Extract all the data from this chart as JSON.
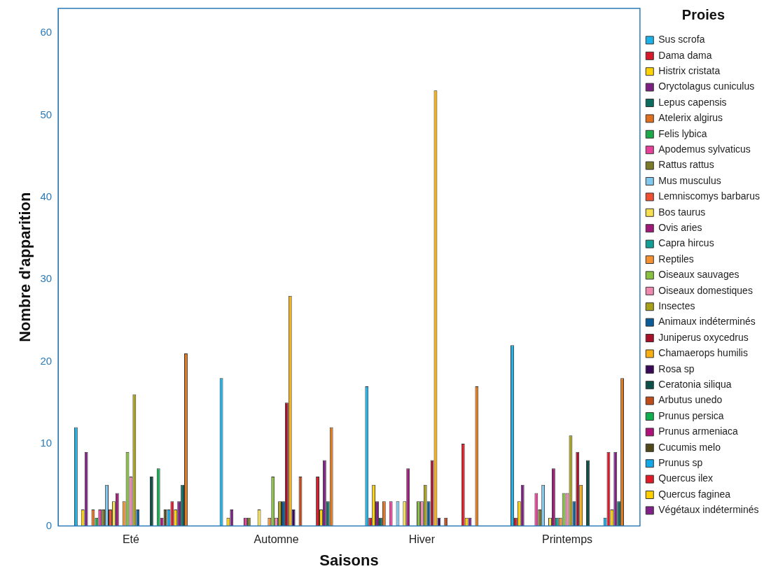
{
  "chart_data": {
    "type": "bar",
    "xlabel": "Saisons",
    "ylabel": "Nombre d'apparition",
    "legend_title": "Proies",
    "legend": "right",
    "grid": false,
    "categories": [
      "Eté",
      "Automne",
      "Hiver",
      "Printemps"
    ],
    "ylim": [
      0,
      63
    ],
    "yticks": [
      0,
      10,
      20,
      30,
      40,
      50,
      60
    ],
    "series": [
      {
        "name": "Sus scrofa",
        "color": "#1ab2e8",
        "values": [
          12,
          18,
          17,
          22
        ]
      },
      {
        "name": "Dama dama",
        "color": "#d7192b",
        "values": [
          0,
          0,
          1,
          1
        ]
      },
      {
        "name": "Histrix cristata",
        "color": "#ffd200",
        "values": [
          2,
          1,
          5,
          3
        ]
      },
      {
        "name": "Oryctolagus cuniculus",
        "color": "#7b1f82",
        "values": [
          9,
          2,
          3,
          5
        ]
      },
      {
        "name": "Lepus capensis",
        "color": "#0a6b60",
        "values": [
          0,
          0,
          1,
          0
        ]
      },
      {
        "name": "Atelerix algirus",
        "color": "#e0701e",
        "values": [
          2,
          0,
          3,
          0
        ]
      },
      {
        "name": "Felis lybica",
        "color": "#1aaa4a",
        "values": [
          1,
          0,
          0,
          0
        ]
      },
      {
        "name": "Apodemus sylvaticus",
        "color": "#e8409a",
        "values": [
          2,
          1,
          3,
          4
        ]
      },
      {
        "name": "Rattus rattus",
        "color": "#7a7a28",
        "values": [
          2,
          1,
          0,
          2
        ]
      },
      {
        "name": "Mus musculus",
        "color": "#80c8ee",
        "values": [
          5,
          0,
          3,
          5
        ]
      },
      {
        "name": "Lemniscomys barbarus",
        "color": "#f05030",
        "values": [
          2,
          0,
          0,
          0
        ]
      },
      {
        "name": "Bos taurus",
        "color": "#f7e050",
        "values": [
          3,
          2,
          3,
          1
        ]
      },
      {
        "name": "Ovis aries",
        "color": "#a0187a",
        "values": [
          4,
          0,
          7,
          7
        ]
      },
      {
        "name": "Capra hircus",
        "color": "#10a098",
        "values": [
          0,
          0,
          0,
          1
        ]
      },
      {
        "name": "Reptiles",
        "color": "#f59030",
        "values": [
          3,
          1,
          0,
          1
        ]
      },
      {
        "name": "Oiseaux sauvages",
        "color": "#88c040",
        "values": [
          9,
          6,
          3,
          4
        ]
      },
      {
        "name": "Oiseaux domestiques",
        "color": "#f088b0",
        "values": [
          6,
          1,
          3,
          4
        ]
      },
      {
        "name": "Insectes",
        "color": "#a8a018",
        "values": [
          16,
          3,
          5,
          11
        ]
      },
      {
        "name": "Animaux indéterminés",
        "color": "#0a5c98",
        "values": [
          2,
          3,
          3,
          3
        ]
      },
      {
        "name": "Juniperus oxycedrus",
        "color": "#a8102a",
        "values": [
          0,
          15,
          8,
          9
        ]
      },
      {
        "name": "Chamaerops humilis",
        "color": "#f8b010",
        "values": [
          0,
          28,
          53,
          5
        ]
      },
      {
        "name": "Rosa sp",
        "color": "#3a0858",
        "values": [
          0,
          2,
          1,
          0
        ]
      },
      {
        "name": "Ceratonia siliqua",
        "color": "#0a5048",
        "values": [
          6,
          0,
          0,
          8
        ]
      },
      {
        "name": "Arbutus unedo",
        "color": "#c04a18",
        "values": [
          0,
          6,
          1,
          0
        ]
      },
      {
        "name": "Prunus persica",
        "color": "#10b050",
        "values": [
          7,
          0,
          0,
          0
        ]
      },
      {
        "name": "Prunus armeniaca",
        "color": "#b0107a",
        "values": [
          1,
          0,
          0,
          0
        ]
      },
      {
        "name": "Cucumis melo",
        "color": "#504818",
        "values": [
          2,
          0,
          0,
          0
        ]
      },
      {
        "name": "Prunus sp",
        "color": "#10a8e8",
        "values": [
          2,
          0,
          0,
          1
        ]
      },
      {
        "name": "Quercus ilex",
        "color": "#e01828",
        "values": [
          3,
          6,
          10,
          9
        ]
      },
      {
        "name": "Quercus faginea",
        "color": "#ffd000",
        "values": [
          2,
          2,
          1,
          2
        ]
      },
      {
        "name": "Végétaux indéterminés",
        "color": "#802088",
        "values": [
          3,
          8,
          1,
          9
        ]
      },
      {
        "color": "#107068",
        "values": [
          5,
          3,
          0,
          3
        ]
      },
      {
        "color": "#e07818",
        "values": [
          21,
          12,
          17,
          18
        ]
      }
    ]
  }
}
